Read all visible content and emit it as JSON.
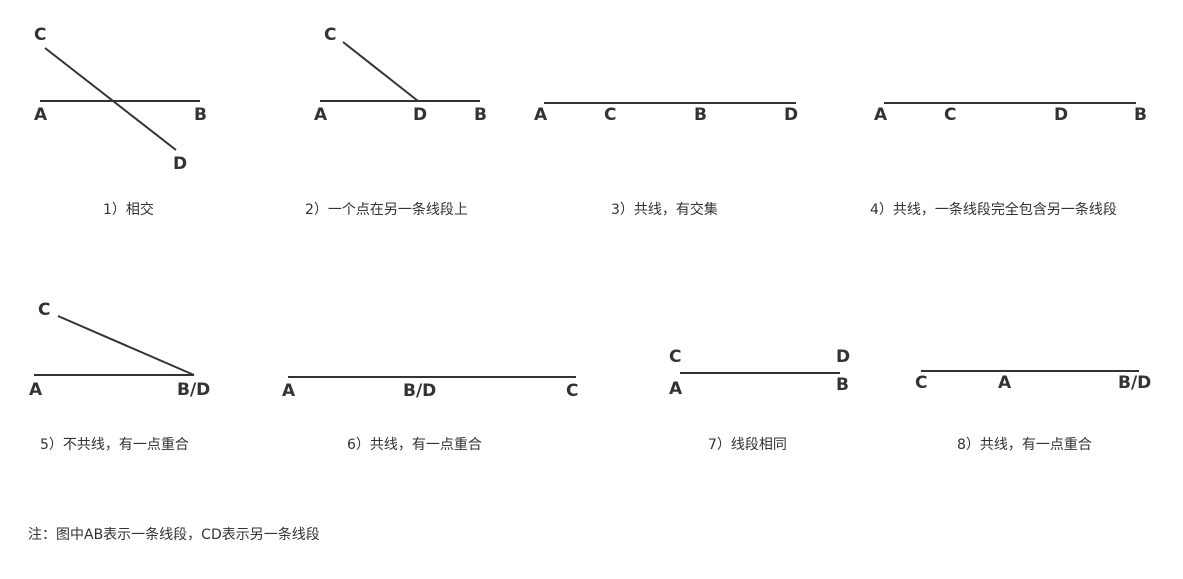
{
  "figures": [
    {
      "caption": "1）相交",
      "labels": {
        "a": "A",
        "b": "B",
        "c": "C",
        "d": "D"
      }
    },
    {
      "caption": "2）一个点在另一条线段上",
      "labels": {
        "a": "A",
        "b": "B",
        "c": "C",
        "d": "D"
      }
    },
    {
      "caption": "3）共线，有交集",
      "labels": {
        "a": "A",
        "c": "C",
        "b": "B",
        "d": "D"
      }
    },
    {
      "caption": "4）共线，一条线段完全包含另一条线段",
      "labels": {
        "a": "A",
        "c": "C",
        "d": "D",
        "b": "B"
      }
    },
    {
      "caption": "5）不共线，有一点重合",
      "labels": {
        "c": "C",
        "a": "A",
        "bd": "B/D"
      }
    },
    {
      "caption": "6）共线，有一点重合",
      "labels": {
        "a": "A",
        "bd": "B/D",
        "c": "C"
      }
    },
    {
      "caption": "7）线段相同",
      "labels": {
        "c": "C",
        "d": "D",
        "a": "A",
        "b": "B"
      }
    },
    {
      "caption": "8）共线，有一点重合",
      "labels": {
        "c": "C",
        "a": "A",
        "bd": "B/D"
      }
    }
  ],
  "note": "注：图中AB表示一条线段，CD表示另一条线段"
}
